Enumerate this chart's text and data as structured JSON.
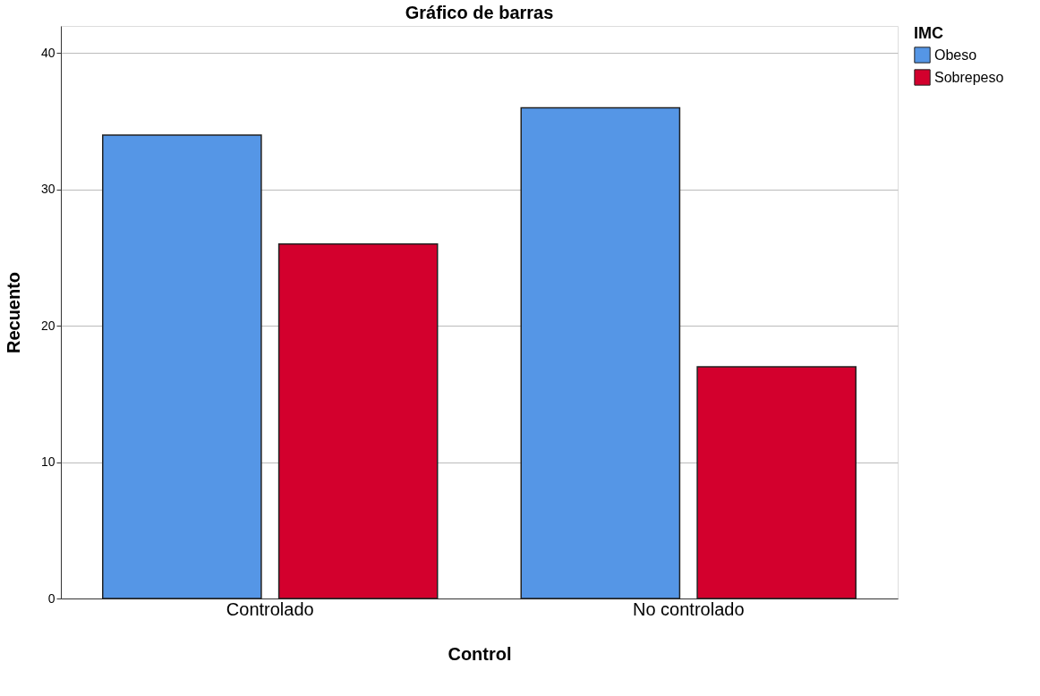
{
  "chart_data": {
    "type": "bar",
    "title": "Gráfico de barras",
    "xlabel": "Control",
    "ylabel": "Recuento",
    "legend_title": "IMC",
    "categories": [
      "Controlado",
      "No controlado"
    ],
    "series": [
      {
        "name": "Obeso",
        "color": "#5596e6",
        "values": [
          34,
          36
        ]
      },
      {
        "name": "Sobrepeso",
        "color": "#d3002d",
        "values": [
          26,
          17
        ]
      }
    ],
    "ylim": [
      0,
      42
    ],
    "yticks": [
      0,
      10,
      20,
      30,
      40
    ],
    "grid": "y",
    "legend": "top right"
  }
}
